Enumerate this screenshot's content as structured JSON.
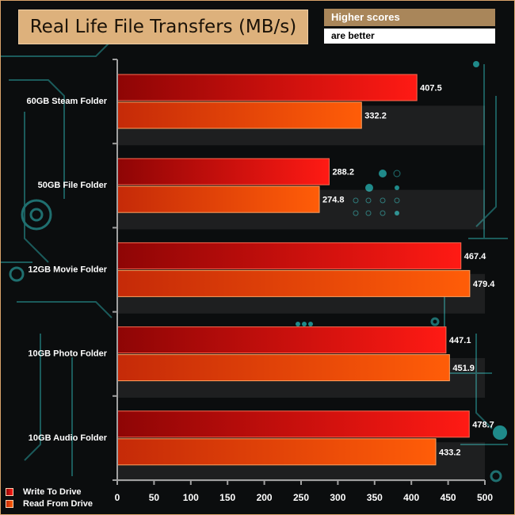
{
  "header": {
    "title": "Real Life File Transfers (MB/s)",
    "note_line1": "Higher scores",
    "note_line2": "are better"
  },
  "colors": {
    "write_dark": "#8e0505",
    "write_light": "#ff1a14",
    "read_dark": "#c52a08",
    "read_light": "#ff5d08",
    "title_bg": "#ddb17c",
    "circuit": "#1f6f6f"
  },
  "chart_data": {
    "type": "bar",
    "orientation": "horizontal",
    "title": "Real Life File Transfers (MB/s)",
    "categories": [
      "60GB Steam Folder",
      "50GB File Folder",
      "12GB Movie Folder",
      "10GB Photo Folder",
      "10GB Audio Folder"
    ],
    "series": [
      {
        "name": "Write To  Drive",
        "values": [
          407.5,
          288.2,
          467.4,
          447.1,
          478.7
        ]
      },
      {
        "name": "Read From  Drive",
        "values": [
          332.2,
          274.8,
          479.4,
          451.9,
          433.2
        ]
      }
    ],
    "xlim": [
      0,
      500
    ],
    "xticks": [
      0,
      50,
      100,
      150,
      200,
      250,
      300,
      350,
      400,
      450,
      500
    ],
    "legend_position": "bottom-left",
    "grid": false
  }
}
